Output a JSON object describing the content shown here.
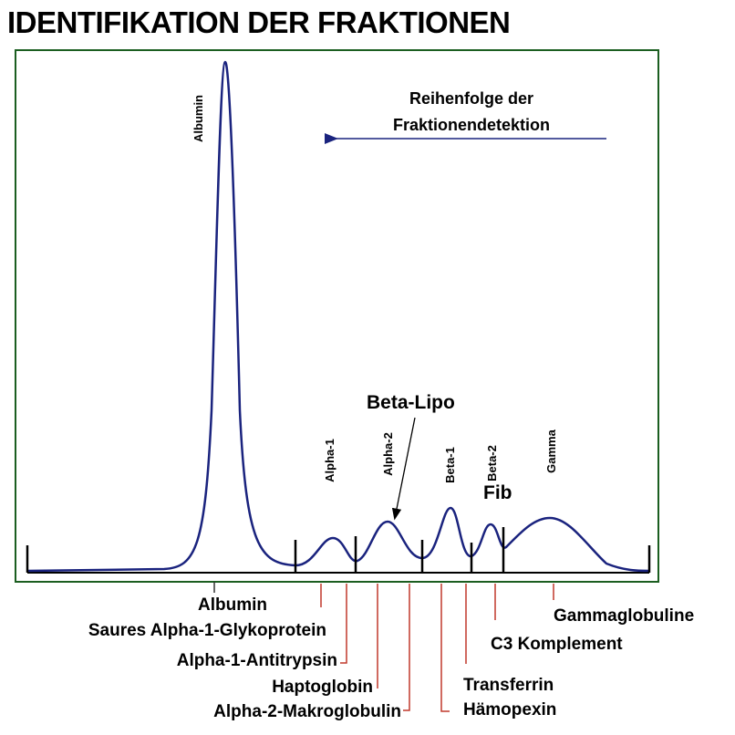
{
  "title": "IDENTIFIKATION DER FRAKTIONEN",
  "direction_note": [
    "Reihenfolge der",
    "Fraktionendetektion"
  ],
  "peak_labels": [
    "Albumin",
    "Alpha-1",
    "Alpha-2",
    "Beta-1",
    "Beta-2",
    "Gamma"
  ],
  "beta_lipo": "Beta-Lipo",
  "fib": "Fib",
  "proteins": [
    "Albumin",
    "Saures Alpha-1-Glykoprotein",
    "Alpha-1-Antitrypsin",
    "Haptoglobin",
    "Alpha-2-Makroglobulin",
    "Transferrin",
    "Hämopexin",
    "C3 Komplement",
    "Gammaglobuline"
  ]
}
